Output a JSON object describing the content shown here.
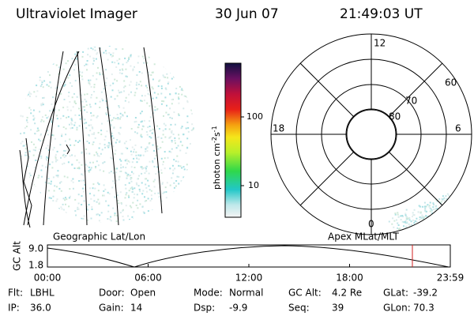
{
  "header": {
    "title": "Ultraviolet Imager",
    "date": "30 Jun 07",
    "time": "21:49:03 UT"
  },
  "colorbar": {
    "label": "photon cm",
    "exp1": "-2",
    "unit2": "s",
    "exp2": "-1",
    "ticks": [
      "100",
      "10"
    ]
  },
  "left_panel": {
    "caption": "Geographic Lat/Lon"
  },
  "polar_panel": {
    "caption": "Apex MLat/MLT",
    "mlt_labels": [
      "12",
      "18",
      "6",
      "0"
    ],
    "lat_labels": [
      "60",
      "70",
      "80"
    ]
  },
  "altitude_plot": {
    "axis_label": "GC Alt",
    "y_ticks": [
      "9.0",
      "1.8"
    ],
    "x_ticks": [
      "00:00",
      "06:00",
      "12:00",
      "18:00",
      "23:59"
    ]
  },
  "info": [
    [
      {
        "label": "Flt:",
        "value": "LBHL"
      },
      {
        "label": "Door:",
        "value": "Open"
      },
      {
        "label": "Mode:",
        "value": "Normal"
      },
      {
        "label": "GC Alt:",
        "value": "4.2 Re"
      },
      {
        "label": "GLat:",
        "value": "-39.2"
      }
    ],
    [
      {
        "label": "IP:",
        "value": "36.0"
      },
      {
        "label": "Gain:",
        "value": "14"
      },
      {
        "label": "Dsp:",
        "value": "-9.9"
      },
      {
        "label": "Seq:",
        "value": "39"
      },
      {
        "label": "GLon:",
        "value": "70.3"
      }
    ]
  ]
}
